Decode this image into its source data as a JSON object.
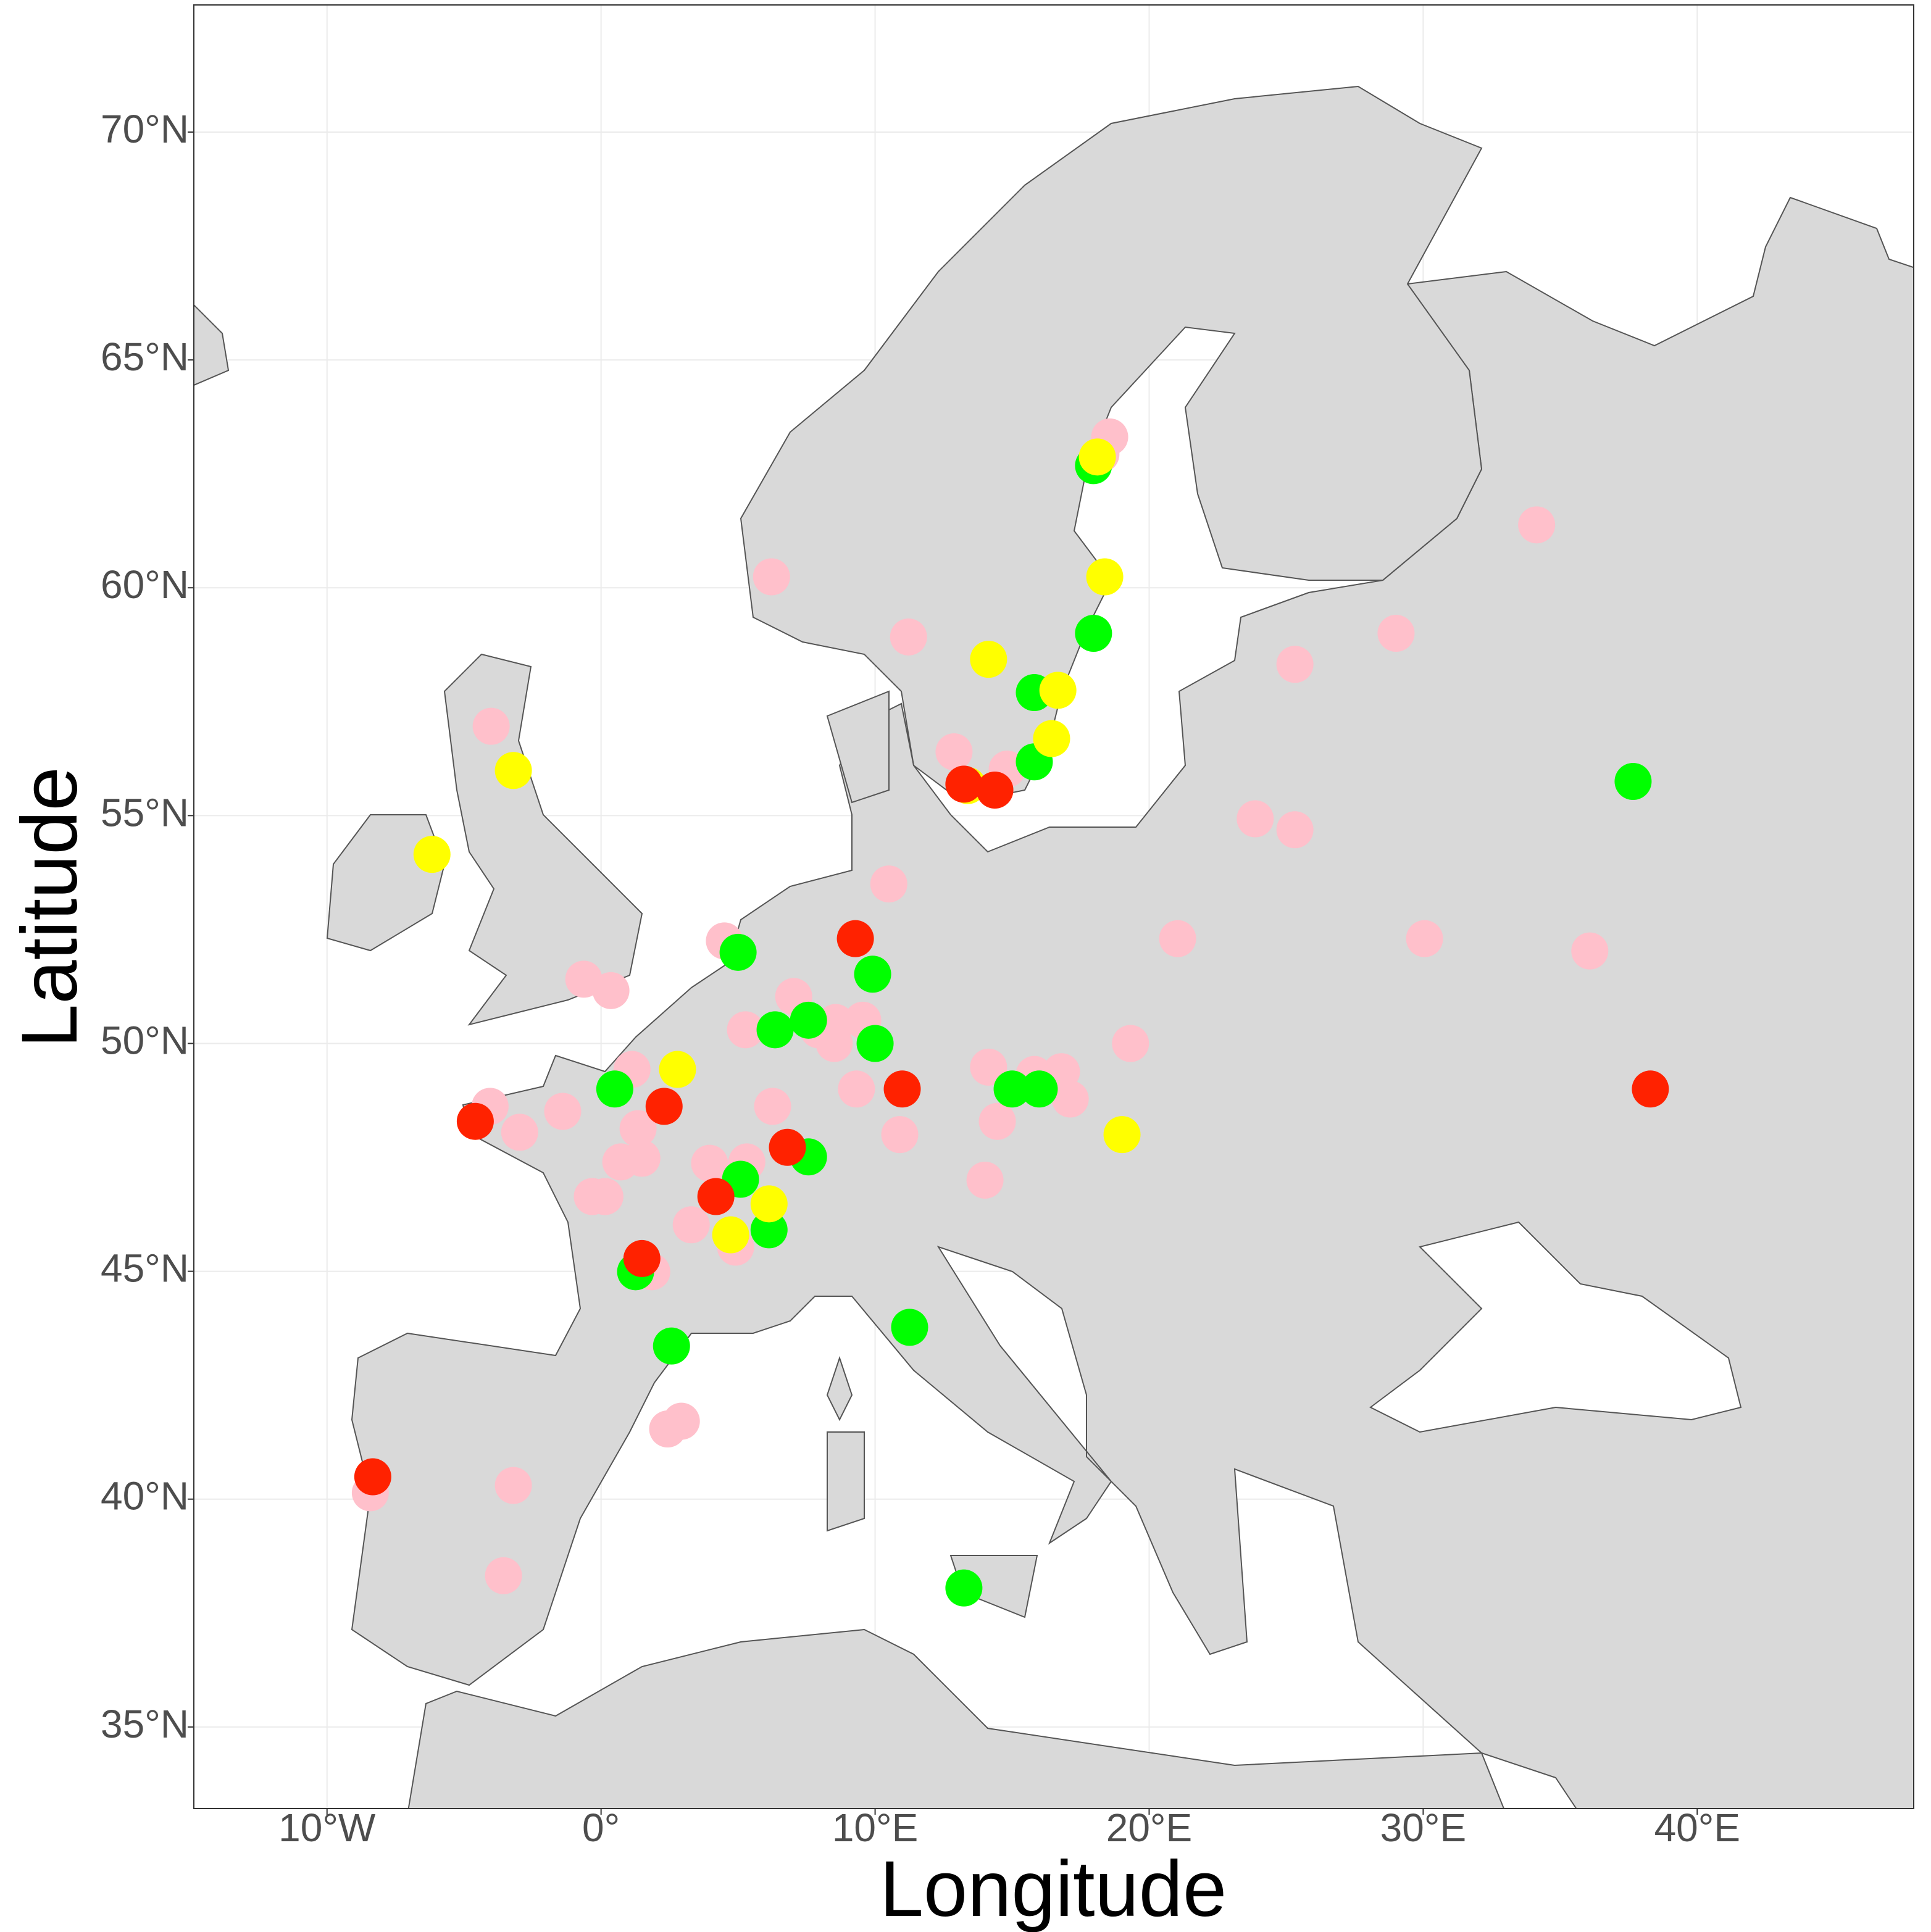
{
  "chart_data": {
    "type": "scatter",
    "x_label": "Longitude",
    "y_label": "Latitude",
    "xlim": [
      -14.86,
      47.9
    ],
    "ylim": [
      33.21,
      72.79
    ],
    "xticks": [
      {
        "value": -10,
        "label": "10°W"
      },
      {
        "value": 0,
        "label": "0°"
      },
      {
        "value": 10,
        "label": "10°E"
      },
      {
        "value": 20,
        "label": "20°E"
      },
      {
        "value": 30,
        "label": "30°E"
      },
      {
        "value": 40,
        "label": "40°E"
      }
    ],
    "yticks": [
      {
        "value": 35,
        "label": "35°N"
      },
      {
        "value": 40,
        "label": "40°N"
      },
      {
        "value": 45,
        "label": "45°N"
      },
      {
        "value": 50,
        "label": "50°N"
      },
      {
        "value": 55,
        "label": "55°N"
      },
      {
        "value": 60,
        "label": "60°N"
      },
      {
        "value": 65,
        "label": "65°N"
      },
      {
        "value": 70,
        "label": "70°N"
      }
    ],
    "grid": true,
    "series": [
      {
        "color": "#ffc0cb",
        "x": [
          -4.01,
          -4.05,
          -2.97,
          -1.4,
          -0.63,
          0.36,
          1.13,
          1.35,
          0.72,
          1.49,
          -0.32,
          0.14,
          3.29,
          4.91,
          1.85,
          3.96,
          5.32,
          5.27,
          6.26,
          4.5,
          7.03,
          7.93,
          8.56,
          8.51,
          9.55,
          9.32,
          10.9,
          10.5,
          6.22,
          11.22,
          12.88,
          14.82,
          14.14,
          14.46,
          14.01,
          15.81,
          16.8,
          17.12,
          19.32,
          21.04,
          23.87,
          25.32,
          25.32,
          29.01,
          34.14,
          30.05,
          36.08,
          -3.2,
          -3.56,
          -8.42,
          2.43,
          2.93,
          18.56,
          18.24
        ],
        "y": [
          56.96,
          48.62,
          48.05,
          48.51,
          51.41,
          51.16,
          49.43,
          48.13,
          47.4,
          47.48,
          46.64,
          46.64,
          46.02,
          45.53,
          44.99,
          47.37,
          47.4,
          50.3,
          48.62,
          52.25,
          51.03,
          50.3,
          50.46,
          50.0,
          50.51,
          49.0,
          48.0,
          53.5,
          60.24,
          58.92,
          56.4,
          56.02,
          49.48,
          48.29,
          47.0,
          49.32,
          49.38,
          48.78,
          50.0,
          52.3,
          54.93,
          54.69,
          58.32,
          59.0,
          61.38,
          52.3,
          52.03,
          40.3,
          38.32,
          40.14,
          41.54,
          41.71,
          63.31,
          62.93
        ]
      },
      {
        "color": "#00ff00",
        "x": [
          0.5,
          5.0,
          6.35,
          7.57,
          9.91,
          10.0,
          5.09,
          7.57,
          6.13,
          1.26,
          2.57,
          11.26,
          13.24,
          15.0,
          15.99,
          15.81,
          15.81,
          17.97,
          17.97,
          37.66
        ],
        "y": [
          49.0,
          52.0,
          50.3,
          50.51,
          51.52,
          50.0,
          47.02,
          47.51,
          45.91,
          44.99,
          43.36,
          43.77,
          38.05,
          49.0,
          49.0,
          56.18,
          57.7,
          59.0,
          62.68,
          55.75
        ]
      },
      {
        "color": "#ffff00",
        "x": [
          -6.17,
          -3.2,
          2.79,
          6.13,
          4.73,
          14.14,
          16.67,
          16.44,
          18.38,
          19.01,
          13.38,
          18.11
        ],
        "y": [
          54.15,
          55.99,
          49.43,
          46.48,
          45.8,
          58.43,
          57.75,
          56.69,
          60.24,
          48.0,
          55.66,
          62.87
        ]
      },
      {
        "color": "#ff2200",
        "x": [
          -8.33,
          -4.59,
          2.3,
          4.19,
          6.8,
          1.49,
          9.28,
          10.99,
          13.24,
          14.37,
          38.29
        ],
        "y": [
          40.49,
          48.29,
          48.62,
          46.64,
          47.72,
          45.28,
          52.3,
          49.0,
          55.69,
          55.56,
          49.0
        ]
      }
    ]
  }
}
